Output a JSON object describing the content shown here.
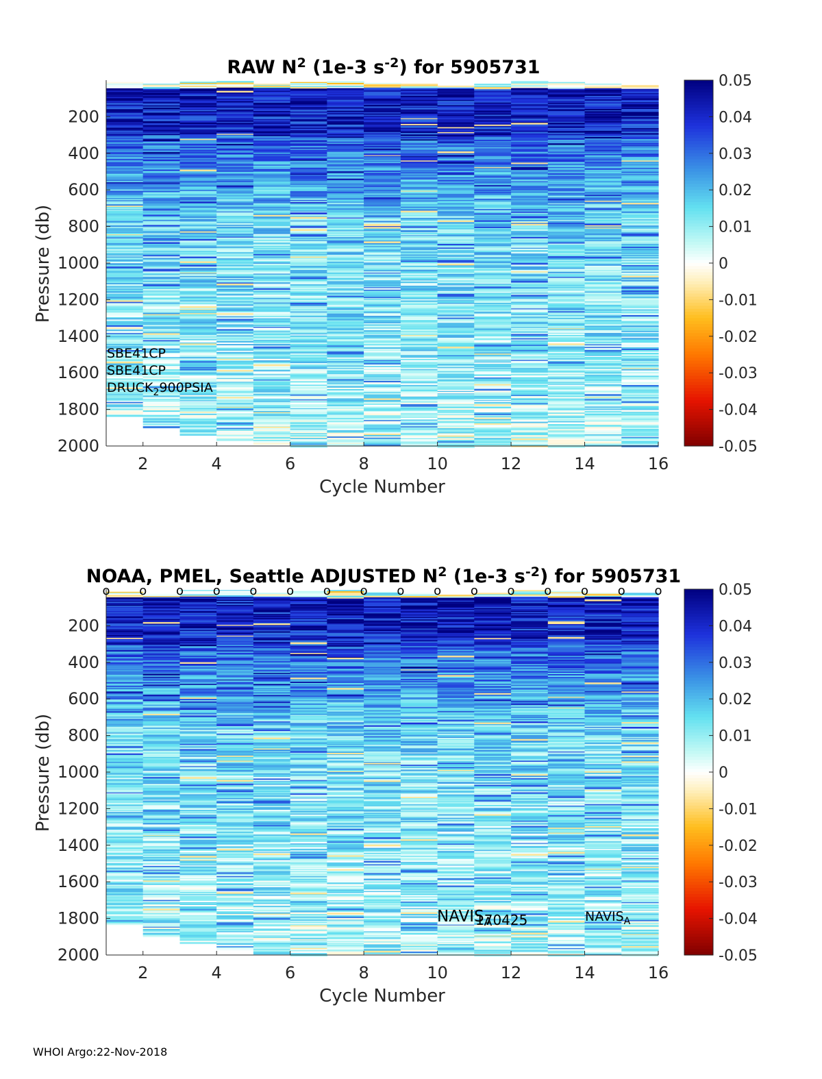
{
  "footer": "WHOI Argo:22-Nov-2018",
  "chart_data": [
    {
      "type": "heatmap",
      "title": {
        "parts": [
          "RAW N",
          "2",
          " (1e-3 s",
          "-2",
          ") for 5905731"
        ]
      },
      "xlabel": "Cycle Number",
      "ylabel": "Pressure (db)",
      "xlim": [
        1,
        16
      ],
      "ylim": [
        0,
        2000
      ],
      "y_reversed": true,
      "xticks": [
        "2",
        "4",
        "6",
        "8",
        "10",
        "12",
        "14",
        "16"
      ],
      "yticks": [
        "200",
        "400",
        "600",
        "800",
        "1000",
        "1200",
        "1400",
        "1600",
        "1800",
        "2000"
      ],
      "colorbar": {
        "range": [
          -0.05,
          0.05
        ],
        "ticks": [
          "0.05",
          "0.04",
          "0.03",
          "0.02",
          "0.01",
          "0",
          "-0.01",
          "-0.02",
          "-0.03",
          "-0.04",
          "-0.05"
        ]
      },
      "cycles": [
        1,
        2,
        3,
        4,
        5,
        6,
        7,
        8,
        9,
        10,
        11,
        12,
        13,
        14,
        15,
        16
      ],
      "profile_top_db": [
        10,
        20,
        5,
        5,
        20,
        10,
        5,
        15,
        20,
        30,
        20,
        5,
        10,
        20,
        20
      ],
      "profile_bottom_db": [
        1830,
        1900,
        1940,
        1970,
        1990,
        2000,
        2000,
        2000,
        2000,
        2000,
        2000,
        2000,
        2000,
        2000,
        2000
      ],
      "annotations": [
        {
          "parts": [
            "SBE41CP"
          ]
        },
        {
          "parts": [
            "SBE41CP"
          ]
        },
        {
          "parts": [
            "DRUCK",
            "2",
            "900PSIA"
          ]
        }
      ],
      "top_markers": false
    },
    {
      "type": "heatmap",
      "title": {
        "parts": [
          "NOAA, PMEL, Seattle  ADJUSTED N",
          "2",
          " (1e-3 s",
          "-2",
          ") for 5905731"
        ]
      },
      "xlabel": "Cycle Number",
      "ylabel": "Pressure (db)",
      "xlim": [
        1,
        16
      ],
      "ylim": [
        0,
        2000
      ],
      "y_reversed": true,
      "xticks": [
        "2",
        "4",
        "6",
        "8",
        "10",
        "12",
        "14",
        "16"
      ],
      "yticks": [
        "200",
        "400",
        "600",
        "800",
        "1000",
        "1200",
        "1400",
        "1600",
        "1800",
        "2000"
      ],
      "colorbar": {
        "range": [
          -0.05,
          0.05
        ],
        "ticks": [
          "0.05",
          "0.04",
          "0.03",
          "0.02",
          "0.01",
          "0",
          "-0.01",
          "-0.02",
          "-0.03",
          "-0.04",
          "-0.05"
        ]
      },
      "cycles": [
        1,
        2,
        3,
        4,
        5,
        6,
        7,
        8,
        9,
        10,
        11,
        12,
        13,
        14,
        15,
        16
      ],
      "profile_top_db": [
        10,
        20,
        5,
        5,
        20,
        10,
        5,
        15,
        20,
        30,
        20,
        5,
        10,
        20,
        20
      ],
      "profile_bottom_db": [
        1830,
        1900,
        1940,
        1970,
        1990,
        2000,
        2000,
        2000,
        2000,
        2000,
        2000,
        2000,
        2000,
        2000,
        2000
      ],
      "annotations": [
        {
          "parts": [
            "NAVIS",
            "A"
          ]
        },
        {
          "parts": [
            "170425"
          ]
        },
        {
          "parts": [
            "NAVIS",
            "A"
          ]
        }
      ],
      "top_markers": true,
      "top_marker_glyph": "o"
    }
  ]
}
